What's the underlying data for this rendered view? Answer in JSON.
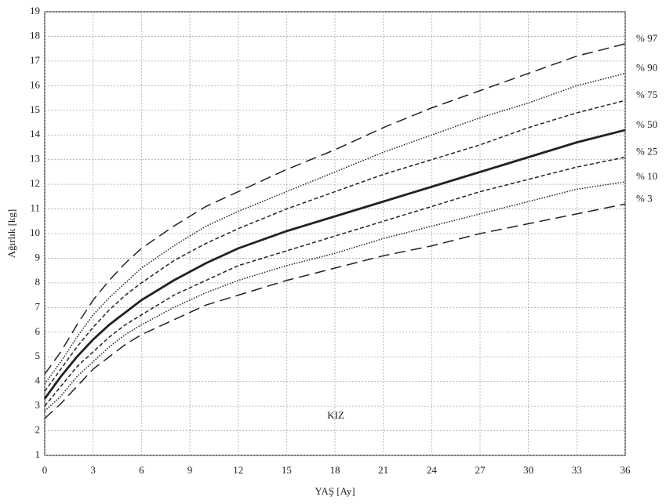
{
  "chart_data": {
    "type": "line",
    "x_label": "YAŞ [Ay]",
    "y_label": "Ağırlık [kg]",
    "annotation": "KIZ",
    "x": [
      0,
      1,
      2,
      3,
      4,
      5,
      6,
      8,
      10,
      12,
      15,
      18,
      21,
      24,
      27,
      30,
      33,
      36
    ],
    "series": [
      {
        "name": "% 97",
        "color": "#222222",
        "style": "long-dash",
        "values": [
          4.3,
          5.2,
          6.3,
          7.3,
          8.1,
          8.8,
          9.4,
          10.3,
          11.1,
          11.7,
          12.6,
          13.4,
          14.3,
          15.1,
          15.8,
          16.5,
          17.2,
          17.7
        ]
      },
      {
        "name": "% 90",
        "color": "#222222",
        "style": "dotted",
        "values": [
          3.9,
          4.8,
          5.8,
          6.7,
          7.4,
          8.0,
          8.6,
          9.5,
          10.3,
          10.9,
          11.7,
          12.5,
          13.3,
          14.0,
          14.7,
          15.3,
          16.0,
          16.5
        ]
      },
      {
        "name": "% 75",
        "color": "#222222",
        "style": "short-dash",
        "values": [
          3.6,
          4.5,
          5.4,
          6.2,
          6.9,
          7.5,
          8.0,
          8.9,
          9.6,
          10.2,
          11.0,
          11.7,
          12.4,
          13.0,
          13.6,
          14.3,
          14.9,
          15.4
        ]
      },
      {
        "name": "% 50",
        "color": "#222222",
        "style": "solid",
        "values": [
          3.3,
          4.2,
          5.0,
          5.7,
          6.3,
          6.8,
          7.3,
          8.1,
          8.8,
          9.4,
          10.1,
          10.7,
          11.3,
          11.9,
          12.5,
          13.1,
          13.7,
          14.2
        ]
      },
      {
        "name": "% 25",
        "color": "#222222",
        "style": "short-dash",
        "values": [
          3.0,
          3.8,
          4.6,
          5.2,
          5.8,
          6.3,
          6.7,
          7.5,
          8.1,
          8.7,
          9.3,
          9.9,
          10.5,
          11.1,
          11.7,
          12.2,
          12.7,
          13.1
        ]
      },
      {
        "name": "% 10",
        "color": "#222222",
        "style": "dotted",
        "values": [
          2.8,
          3.4,
          4.2,
          4.8,
          5.4,
          5.9,
          6.3,
          7.0,
          7.6,
          8.1,
          8.7,
          9.2,
          9.8,
          10.3,
          10.8,
          11.3,
          11.8,
          12.1
        ]
      },
      {
        "name": "% 3",
        "color": "#222222",
        "style": "long-dash",
        "values": [
          2.5,
          3.1,
          3.8,
          4.5,
          5.0,
          5.5,
          5.9,
          6.5,
          7.1,
          7.5,
          8.1,
          8.6,
          9.1,
          9.5,
          10.0,
          10.4,
          10.8,
          11.2
        ]
      }
    ],
    "xlim": [
      0,
      36
    ],
    "xticks": [
      0,
      3,
      6,
      9,
      12,
      15,
      18,
      21,
      24,
      27,
      30,
      33,
      36
    ],
    "ylim": [
      1,
      19
    ],
    "yticks": [
      1,
      2,
      3,
      4,
      5,
      6,
      7,
      8,
      9,
      10,
      11,
      12,
      13,
      14,
      15,
      16,
      17,
      18,
      19
    ],
    "grid": true
  }
}
